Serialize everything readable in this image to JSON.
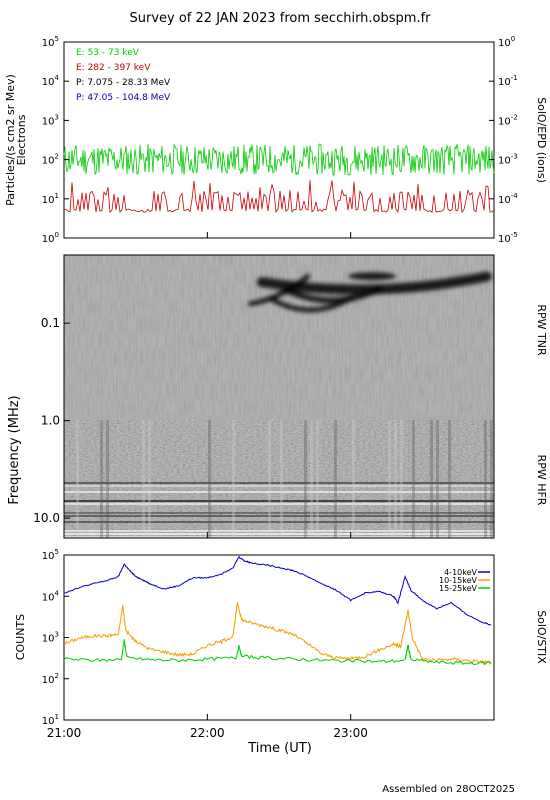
{
  "title": "Survey of 22 JAN 2023 from secchirh.obspm.fr",
  "footer": "Assembled on 28OCT2025",
  "chart_data": [
    {
      "type": "line",
      "panel": "epd",
      "ylabel": "Particles/(s cm2 sr Mev)",
      "ylabel2": "Electrons",
      "right_label": "SolO/EPD (ions)",
      "y_scale": "log",
      "ylim": [
        1,
        100000
      ],
      "y_ticks": [
        "10^0",
        "10^1",
        "10^2",
        "10^3",
        "10^4",
        "10^5"
      ],
      "right_ylim": [
        1e-05,
        1
      ],
      "right_ticks": [
        "10^-5",
        "10^-4",
        "10^-3",
        "10^-2",
        "10^-1",
        "10^0"
      ],
      "x_range_ut_hours": [
        21,
        24
      ],
      "legend": [
        {
          "label": "E: 53 - 73 keV",
          "color": "#00cc00"
        },
        {
          "label": "E: 282 - 397 keV",
          "color": "#cc0000"
        },
        {
          "label": "P: 7.075 - 28.33 MeV",
          "color": "#000000"
        },
        {
          "label": "P: 47.05 - 104.8 MeV",
          "color": "#0000bb"
        }
      ],
      "series": [
        {
          "name": "E: 53 - 73 keV",
          "color": "#00cc00",
          "typical_value": 100,
          "range": [
            40,
            300
          ]
        },
        {
          "name": "E: 282 - 397 keV",
          "color": "#cc0000",
          "typical_value": 5,
          "range": [
            4,
            30
          ]
        }
      ]
    },
    {
      "type": "heatmap",
      "panel": "rpw",
      "ylabel": "Frequency (MHz)",
      "y_scale": "log",
      "y_ticks": [
        "0.1",
        "1.0",
        "10.0"
      ],
      "y_range_mhz": [
        0.02,
        16
      ],
      "right_labels": [
        "RPW TNR",
        "RPW HFR"
      ],
      "x_range_ut_hours": [
        21,
        24
      ],
      "bursts": [
        {
          "start_ut": 22.38,
          "end_ut": 23.95,
          "freq_start_mhz": 0.03,
          "freq_end_mhz": 0.05,
          "color": "black"
        },
        {
          "start_ut": 23.0,
          "end_ut": 23.35,
          "freq_mhz": 0.03,
          "color": "black"
        }
      ]
    },
    {
      "type": "line",
      "panel": "stix",
      "ylabel": "COUNTS",
      "right_label": "SolO/STIX",
      "xlabel": "Time (UT)",
      "y_scale": "log",
      "ylim": [
        10,
        100000
      ],
      "y_ticks": [
        "10^1",
        "10^2",
        "10^3",
        "10^4",
        "10^5"
      ],
      "x_ticks": [
        "21:00",
        "22:00",
        "23:00"
      ],
      "x_range_ut_hours": [
        21,
        24
      ],
      "legend_position": "top-right",
      "series": [
        {
          "name": "4-10keV",
          "color": "#0000cc",
          "x": [
            21.0,
            21.1,
            21.2,
            21.3,
            21.38,
            21.42,
            21.45,
            21.5,
            21.55,
            21.6,
            21.7,
            21.8,
            21.9,
            22.0,
            22.1,
            22.18,
            22.22,
            22.26,
            22.3,
            22.4,
            22.5,
            22.6,
            22.7,
            22.8,
            22.9,
            23.0,
            23.1,
            23.2,
            23.3,
            23.33,
            23.38,
            23.42,
            23.5,
            23.6,
            23.7,
            23.8,
            23.9,
            23.98
          ],
          "values": [
            12000,
            16000,
            20000,
            24000,
            30000,
            60000,
            45000,
            30000,
            25000,
            20000,
            15000,
            18000,
            28000,
            28000,
            35000,
            50000,
            90000,
            72000,
            65000,
            58000,
            50000,
            42000,
            30000,
            20000,
            14000,
            8000,
            12000,
            13000,
            10000,
            7000,
            30000,
            14000,
            8000,
            5000,
            7000,
            3800,
            2500,
            2000
          ]
        },
        {
          "name": "10-15keV",
          "color": "#ff9900",
          "x": [
            21.0,
            21.1,
            21.2,
            21.3,
            21.38,
            21.41,
            21.43,
            21.5,
            21.6,
            21.7,
            21.8,
            21.9,
            22.0,
            22.1,
            22.18,
            22.21,
            22.24,
            22.3,
            22.4,
            22.5,
            22.6,
            22.7,
            22.8,
            22.9,
            23.0,
            23.1,
            23.2,
            23.3,
            23.35,
            23.4,
            23.43,
            23.5,
            23.6,
            23.7,
            23.8,
            23.9,
            23.98
          ],
          "values": [
            700,
            950,
            1100,
            1100,
            1200,
            6000,
            1500,
            800,
            520,
            450,
            380,
            400,
            650,
            800,
            1100,
            7000,
            2700,
            2300,
            1900,
            1500,
            1200,
            700,
            400,
            320,
            310,
            350,
            500,
            700,
            600,
            4500,
            1000,
            300,
            280,
            300,
            280,
            260,
            250
          ]
        },
        {
          "name": "15-25keV",
          "color": "#00cc00",
          "x": [
            21.0,
            21.2,
            21.4,
            21.42,
            21.44,
            21.6,
            21.8,
            22.0,
            22.2,
            22.22,
            22.24,
            22.4,
            22.6,
            22.8,
            23.0,
            23.2,
            23.38,
            23.4,
            23.42,
            23.6,
            23.8,
            23.98
          ],
          "values": [
            300,
            280,
            290,
            850,
            320,
            290,
            280,
            300,
            320,
            600,
            350,
            320,
            300,
            280,
            270,
            260,
            280,
            650,
            290,
            250,
            240,
            240
          ]
        }
      ]
    }
  ]
}
